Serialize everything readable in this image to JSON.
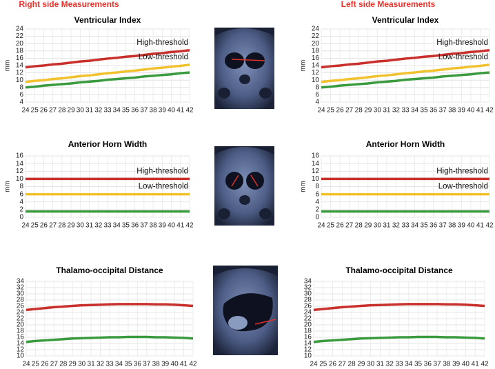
{
  "headers": {
    "right": "Right side Measurements",
    "left": "Left side Measurements"
  },
  "chart_data": [
    {
      "type": "line",
      "title": "Ventricular Index",
      "ylabel": "mm",
      "x": [
        24,
        25,
        26,
        27,
        28,
        29,
        30,
        31,
        32,
        33,
        34,
        35,
        36,
        37,
        38,
        39,
        40,
        41,
        42
      ],
      "xlim": [
        24,
        42
      ],
      "xticks": [
        24,
        25,
        26,
        27,
        28,
        29,
        30,
        31,
        32,
        33,
        34,
        35,
        36,
        37,
        38,
        39,
        40,
        41,
        42
      ],
      "ylim": [
        4,
        24
      ],
      "yticks": [
        4,
        6,
        8,
        10,
        12,
        14,
        16,
        18,
        20,
        22,
        24
      ],
      "grid": true,
      "series": [
        {
          "name": "High-threshold",
          "color": "#c9302c",
          "values": [
            13.5,
            13.8,
            14.0,
            14.3,
            14.5,
            14.8,
            15.1,
            15.3,
            15.6,
            15.9,
            16.1,
            16.4,
            16.6,
            16.9,
            17.2,
            17.4,
            17.7,
            17.9,
            18.2
          ]
        },
        {
          "name": "Low-threshold",
          "color": "#f2c12e",
          "values": [
            9.5,
            9.8,
            10.0,
            10.3,
            10.5,
            10.8,
            11.1,
            11.3,
            11.6,
            11.9,
            12.1,
            12.4,
            12.6,
            12.9,
            13.2,
            13.4,
            13.7,
            13.9,
            14.2
          ]
        },
        {
          "color": "#3a9a3e",
          "values": [
            8.0,
            8.2,
            8.5,
            8.7,
            8.9,
            9.1,
            9.4,
            9.6,
            9.8,
            10.1,
            10.3,
            10.5,
            10.7,
            11.0,
            11.2,
            11.4,
            11.6,
            11.9,
            12.1
          ]
        }
      ]
    },
    {
      "type": "line",
      "title": "Ventricular Index",
      "ylabel": "mm",
      "x": [
        24,
        25,
        26,
        27,
        28,
        29,
        30,
        31,
        32,
        33,
        34,
        35,
        36,
        37,
        38,
        39,
        40,
        41,
        42
      ],
      "xlim": [
        24,
        42
      ],
      "xticks": [
        24,
        25,
        26,
        27,
        28,
        29,
        30,
        31,
        32,
        33,
        34,
        35,
        36,
        37,
        38,
        39,
        40,
        41,
        42
      ],
      "ylim": [
        4,
        24
      ],
      "yticks": [
        4,
        6,
        8,
        10,
        12,
        14,
        16,
        18,
        20,
        22,
        24
      ],
      "grid": true,
      "series": [
        {
          "name": "High-threshold",
          "color": "#c9302c",
          "values": [
            13.5,
            13.8,
            14.0,
            14.3,
            14.5,
            14.8,
            15.1,
            15.3,
            15.6,
            15.9,
            16.1,
            16.4,
            16.6,
            16.9,
            17.2,
            17.4,
            17.7,
            17.9,
            18.2
          ]
        },
        {
          "name": "Low-threshold",
          "color": "#f2c12e",
          "values": [
            9.5,
            9.8,
            10.0,
            10.3,
            10.5,
            10.8,
            11.1,
            11.3,
            11.6,
            11.9,
            12.1,
            12.4,
            12.6,
            12.9,
            13.2,
            13.4,
            13.7,
            13.9,
            14.2
          ]
        },
        {
          "color": "#3a9a3e",
          "values": [
            8.0,
            8.2,
            8.5,
            8.7,
            8.9,
            9.1,
            9.4,
            9.6,
            9.8,
            10.1,
            10.3,
            10.5,
            10.7,
            11.0,
            11.2,
            11.4,
            11.6,
            11.9,
            12.1
          ]
        }
      ]
    },
    {
      "type": "line",
      "title": "Anterior Horn Width",
      "ylabel": "mm",
      "x": [
        24,
        25,
        26,
        27,
        28,
        29,
        30,
        31,
        32,
        33,
        34,
        35,
        36,
        37,
        38,
        39,
        40,
        41,
        42
      ],
      "xlim": [
        24,
        42
      ],
      "xticks": [
        24,
        25,
        26,
        27,
        28,
        29,
        30,
        31,
        32,
        33,
        34,
        35,
        36,
        37,
        38,
        39,
        40,
        41,
        42
      ],
      "ylim": [
        0,
        16
      ],
      "yticks": [
        0,
        2,
        4,
        6,
        8,
        10,
        12,
        14,
        16
      ],
      "grid": true,
      "series": [
        {
          "name": "High-threshold",
          "color": "#c9302c",
          "values": [
            10,
            10,
            10,
            10,
            10,
            10,
            10,
            10,
            10,
            10,
            10,
            10,
            10,
            10,
            10,
            10,
            10,
            10,
            10
          ]
        },
        {
          "name": "Low-threshold",
          "color": "#f2c12e",
          "values": [
            6,
            6,
            6,
            6,
            6,
            6,
            6,
            6,
            6,
            6,
            6,
            6,
            6,
            6,
            6,
            6,
            6,
            6,
            6
          ]
        },
        {
          "color": "#3a9a3e",
          "values": [
            1.5,
            1.5,
            1.5,
            1.5,
            1.5,
            1.5,
            1.5,
            1.5,
            1.5,
            1.5,
            1.5,
            1.5,
            1.5,
            1.5,
            1.5,
            1.5,
            1.5,
            1.5,
            1.5
          ]
        }
      ]
    },
    {
      "type": "line",
      "title": "Anterior Horn Width",
      "ylabel": "mm",
      "x": [
        24,
        25,
        26,
        27,
        28,
        29,
        30,
        31,
        32,
        33,
        34,
        35,
        36,
        37,
        38,
        39,
        40,
        41,
        42
      ],
      "xlim": [
        24,
        42
      ],
      "xticks": [
        24,
        25,
        26,
        27,
        28,
        29,
        30,
        31,
        32,
        33,
        34,
        35,
        36,
        37,
        38,
        39,
        40,
        41,
        42
      ],
      "ylim": [
        0,
        16
      ],
      "yticks": [
        0,
        2,
        4,
        6,
        8,
        10,
        12,
        14,
        16
      ],
      "grid": true,
      "series": [
        {
          "name": "High-threshold",
          "color": "#c9302c",
          "values": [
            10,
            10,
            10,
            10,
            10,
            10,
            10,
            10,
            10,
            10,
            10,
            10,
            10,
            10,
            10,
            10,
            10,
            10,
            10
          ]
        },
        {
          "name": "Low-threshold",
          "color": "#f2c12e",
          "values": [
            6,
            6,
            6,
            6,
            6,
            6,
            6,
            6,
            6,
            6,
            6,
            6,
            6,
            6,
            6,
            6,
            6,
            6,
            6
          ]
        },
        {
          "color": "#3a9a3e",
          "values": [
            1.5,
            1.5,
            1.5,
            1.5,
            1.5,
            1.5,
            1.5,
            1.5,
            1.5,
            1.5,
            1.5,
            1.5,
            1.5,
            1.5,
            1.5,
            1.5,
            1.5,
            1.5,
            1.5
          ]
        }
      ]
    },
    {
      "type": "line",
      "title": "Thalamo-occipital Distance",
      "x": [
        24,
        25,
        26,
        27,
        28,
        29,
        30,
        31,
        32,
        33,
        34,
        35,
        36,
        37,
        38,
        39,
        40,
        41,
        42
      ],
      "xlim": [
        24,
        42
      ],
      "xticks": [
        24,
        25,
        26,
        27,
        28,
        29,
        30,
        31,
        32,
        33,
        34,
        35,
        36,
        37,
        38,
        39,
        40,
        41,
        42
      ],
      "ylim": [
        10,
        34
      ],
      "yticks": [
        10,
        12,
        14,
        16,
        18,
        20,
        22,
        24,
        26,
        28,
        30,
        32,
        34
      ],
      "grid": true,
      "series": [
        {
          "color": "#c9302c",
          "values": [
            24.8,
            25.1,
            25.4,
            25.7,
            25.9,
            26.1,
            26.3,
            26.4,
            26.5,
            26.6,
            26.7,
            26.7,
            26.7,
            26.7,
            26.6,
            26.6,
            26.5,
            26.3,
            26.1
          ]
        },
        {
          "color": "#3a9a3e",
          "values": [
            14.5,
            14.8,
            15.0,
            15.2,
            15.4,
            15.6,
            15.7,
            15.8,
            15.9,
            16.0,
            16.0,
            16.1,
            16.1,
            16.1,
            16.0,
            16.0,
            15.9,
            15.8,
            15.6
          ]
        }
      ]
    },
    {
      "type": "line",
      "title": "Thalamo-occipital Distance",
      "x": [
        24,
        25,
        26,
        27,
        28,
        29,
        30,
        31,
        32,
        33,
        34,
        35,
        36,
        37,
        38,
        39,
        40,
        41,
        42
      ],
      "xlim": [
        24,
        42
      ],
      "xticks": [
        24,
        25,
        26,
        27,
        28,
        29,
        30,
        31,
        32,
        33,
        34,
        35,
        36,
        37,
        38,
        39,
        40,
        41,
        42
      ],
      "ylim": [
        10,
        34
      ],
      "yticks": [
        10,
        12,
        14,
        16,
        18,
        20,
        22,
        24,
        26,
        28,
        30,
        32,
        34
      ],
      "grid": true,
      "series": [
        {
          "color": "#c9302c",
          "values": [
            24.8,
            25.1,
            25.4,
            25.7,
            25.9,
            26.1,
            26.3,
            26.4,
            26.5,
            26.6,
            26.7,
            26.7,
            26.7,
            26.7,
            26.6,
            26.6,
            26.5,
            26.3,
            26.1
          ]
        },
        {
          "color": "#3a9a3e",
          "values": [
            14.5,
            14.8,
            15.0,
            15.2,
            15.4,
            15.6,
            15.7,
            15.8,
            15.9,
            16.0,
            16.0,
            16.1,
            16.1,
            16.1,
            16.0,
            16.0,
            15.9,
            15.8,
            15.6
          ]
        }
      ]
    }
  ]
}
